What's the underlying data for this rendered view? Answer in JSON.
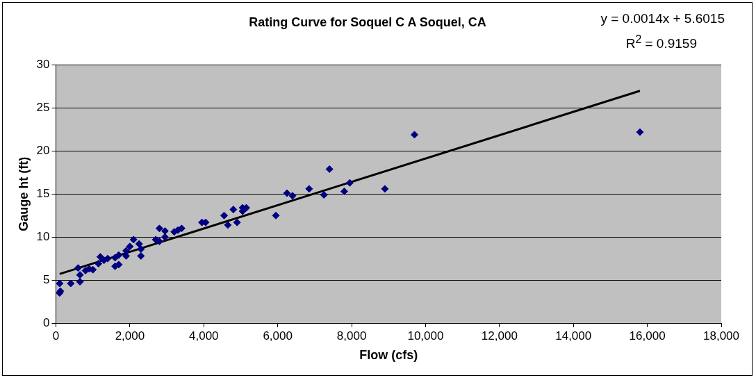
{
  "chart_data": {
    "type": "scatter",
    "title": "Rating Curve for Soquel C A Soquel, CA",
    "xlabel": "Flow (cfs)",
    "ylabel": "Gauge ht (ft)",
    "annotations": [
      "y = 0.0014x + 5.6015",
      "R$^{2}$ = 0.9159"
    ],
    "series": [
      {
        "type": "scatter",
        "marker": "diamond",
        "color": "#000080",
        "x": [
          100,
          120,
          100,
          400,
          650,
          650,
          600,
          800,
          1000,
          900,
          1150,
          1200,
          1400,
          1300,
          1600,
          1700,
          1700,
          1600,
          1900,
          1900,
          2000,
          2100,
          2250,
          2300,
          2300,
          2700,
          2800,
          2800,
          2950,
          2950,
          3200,
          3300,
          3400,
          3950,
          4050,
          4550,
          4650,
          4800,
          4900,
          5050,
          5150,
          5050,
          5950,
          6250,
          6400,
          6850,
          7250,
          7400,
          7800,
          7950,
          8900,
          9700,
          15800
        ],
        "values": [
          3.5,
          3.7,
          4.6,
          4.6,
          4.8,
          5.6,
          6.4,
          6.1,
          6.2,
          6.3,
          6.9,
          7.7,
          7.5,
          7.3,
          6.6,
          6.8,
          7.9,
          7.6,
          7.8,
          8.4,
          8.9,
          9.7,
          9.2,
          8.6,
          7.8,
          9.7,
          9.5,
          11.0,
          10.7,
          10.0,
          10.6,
          10.8,
          11.0,
          11.7,
          11.7,
          12.5,
          11.4,
          13.2,
          11.7,
          13.4,
          13.4,
          13.0,
          12.5,
          15.1,
          14.8,
          15.6,
          14.9,
          17.9,
          15.3,
          16.3,
          15.6,
          21.9,
          22.2
        ]
      },
      {
        "type": "line",
        "marker": "none",
        "color": "#000000",
        "x": [
          100,
          15800
        ],
        "values": [
          5.7,
          27.0
        ]
      }
    ],
    "xlim": [
      0,
      18000
    ],
    "xticks": [
      0,
      {
        "value": 2000,
        "label": "2,000"
      },
      {
        "value": 4000,
        "label": "4,000"
      },
      {
        "value": 6000,
        "label": "6,000"
      },
      {
        "value": 8000,
        "label": "8,000"
      },
      {
        "value": 10000,
        "label": "10,000"
      },
      {
        "value": 12000,
        "label": "12,000"
      },
      {
        "value": 14000,
        "label": "14,000"
      },
      {
        "value": 16000,
        "label": "16,000"
      },
      {
        "value": 18000,
        "label": "18,000"
      }
    ],
    "ylim": [
      0,
      30
    ],
    "yticks": [
      0,
      5,
      10,
      15,
      20,
      25,
      30
    ],
    "grid": "y",
    "legend": false,
    "line_style": "solid"
  }
}
